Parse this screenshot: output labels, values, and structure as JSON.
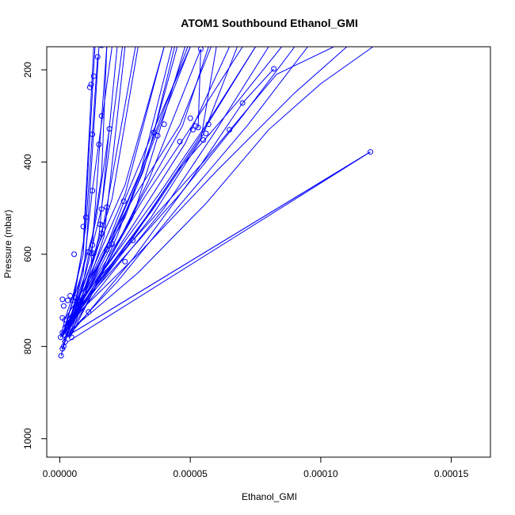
{
  "chart_data": {
    "type": "line",
    "title": "ATOM1 Southbound Ethanol_GMI",
    "xlabel": "Ethanol_GMI",
    "ylabel": "Pressure (mbar)",
    "xlim": [
      -5e-06,
      0.000165
    ],
    "ylim": [
      1040,
      150
    ],
    "y_reversed": true,
    "grid": false,
    "legend": "none",
    "series_color": "#0000ff",
    "x_ticks": [
      {
        "value": 0,
        "label": "0.00000"
      },
      {
        "value": 5e-05,
        "label": "0.00005"
      },
      {
        "value": 0.0001,
        "label": "0.00010"
      },
      {
        "value": 0.00015,
        "label": "0.00015"
      }
    ],
    "y_ticks": [
      {
        "value": 200,
        "label": "200"
      },
      {
        "value": 400,
        "label": "400"
      },
      {
        "value": 600,
        "label": "600"
      },
      {
        "value": 800,
        "label": "800"
      },
      {
        "value": 1000,
        "label": "1000"
      }
    ],
    "series": [
      {
        "x": [
          5e-07,
          1.5e-06,
          3e-06,
          5e-06,
          9e-06,
          1.25e-05,
          2e-05
        ],
        "y": [
          820,
          800,
          770,
          720,
          640,
          460,
          150
        ]
      },
      {
        "x": [
          1e-06,
          3e-06,
          6e-06,
          1e-05,
          1.5e-05
        ],
        "y": [
          805,
          760,
          700,
          600,
          150
        ]
      },
      {
        "x": [
          2e-06,
          5e-06,
          9e-06,
          1.4e-05,
          1.9e-05
        ],
        "y": [
          790,
          740,
          660,
          520,
          328
        ]
      },
      {
        "x": [
          1e-06,
          5e-06,
          1e-05,
          1.6e-05,
          2.4e-05
        ],
        "y": [
          780,
          720,
          640,
          500,
          150
        ]
      },
      {
        "x": [
          1.5e-06,
          4e-06,
          8e-06,
          1.25e-05,
          1.6e-05,
          1.8e-05
        ],
        "y": [
          775,
          720,
          650,
          560,
          430,
          150
        ]
      },
      {
        "x": [
          3e-07,
          2e-06,
          5e-06,
          9e-06,
          1.35e-05
        ],
        "y": [
          780,
          740,
          690,
          600,
          150
        ]
      },
      {
        "x": [
          4e-06,
          9e-06,
          1.5e-05,
          2.2e-05
        ],
        "y": [
          780,
          700,
          560,
          150
        ]
      },
      {
        "x": [
          2e-06,
          6e-06,
          1.2e-05,
          1.8e-05
        ],
        "y": [
          770,
          720,
          620,
          150
        ]
      },
      {
        "x": [
          1e-06,
          6e-06,
          1.2e-05,
          2e-05,
          3e-05
        ],
        "y": [
          775,
          710,
          620,
          480,
          150
        ]
      },
      {
        "x": [
          3e-06,
          1.2e-05,
          2.5e-05,
          4e-05
        ],
        "y": [
          770,
          640,
          470,
          150
        ]
      },
      {
        "x": [
          1e-06,
          1e-05,
          2e-05,
          3.1e-05,
          4.3e-05
        ],
        "y": [
          780,
          680,
          560,
          420,
          150
        ]
      },
      {
        "x": [
          2e-06,
          1.4e-05,
          3e-05,
          4.8e-05,
          6.5e-05
        ],
        "y": [
          770,
          660,
          520,
          360,
          150
        ]
      },
      {
        "x": [
          3e-06,
          2e-05,
          4e-05,
          6e-05,
          8e-05
        ],
        "y": [
          760,
          640,
          500,
          330,
          150
        ]
      },
      {
        "x": [
          5e-06,
          2.4e-05,
          4.6e-05,
          7e-05,
          9e-05
        ],
        "y": [
          730,
          610,
          470,
          300,
          150
        ]
      },
      {
        "x": [
          2e-06,
          1.6e-05,
          3.3e-05,
          5.2e-05,
          7.5e-05
        ],
        "y": [
          770,
          650,
          520,
          360,
          150
        ]
      },
      {
        "x": [
          4e-06,
          2.8e-05,
          5.5e-05,
          8.3e-05,
          0.000105
        ],
        "y": [
          720,
          570,
          400,
          210,
          150
        ]
      },
      {
        "x": [
          3e-06,
          3e-05,
          6e-05,
          9e-05,
          0.00011
        ],
        "y": [
          750,
          600,
          420,
          250,
          150
        ]
      },
      {
        "x": [
          2e-06,
          2.2e-05,
          4.5e-05,
          7.2e-05,
          9.5e-05
        ],
        "y": [
          780,
          660,
          500,
          320,
          150
        ]
      },
      {
        "x": [
          2e-06,
          0.000119,
          3e-06
        ],
        "y": [
          780,
          378,
          790
        ]
      },
      {
        "x": [
          2e-06,
          0.000119
        ],
        "y": [
          780,
          378
        ]
      },
      {
        "x": [
          3e-06,
          3e-05,
          5.6e-05,
          8e-05,
          0.0001,
          0.00012
        ],
        "y": [
          770,
          640,
          490,
          330,
          230,
          150
        ]
      },
      {
        "x": [
          1e-06,
          1.8e-05,
          3.5e-05,
          5.4e-05,
          6e-05
        ],
        "y": [
          760,
          640,
          520,
          352,
          150
        ]
      },
      {
        "x": [
          2e-06,
          1.2e-05,
          2.5e-05,
          3.7e-05,
          5e-05
        ],
        "y": [
          740,
          650,
          520,
          338,
          150
        ]
      },
      {
        "x": [
          3e-06,
          1.8e-05,
          3.2e-05,
          4.7e-05,
          5.7e-05
        ],
        "y": [
          750,
          620,
          470,
          322,
          150
        ]
      },
      {
        "x": [
          4e-06,
          1.6e-05,
          2.8e-05,
          3.9e-05,
          4.8e-05
        ],
        "y": [
          760,
          640,
          520,
          318,
          150
        ]
      },
      {
        "x": [
          2e-06,
          9e-06,
          1.8e-05,
          3.2e-05,
          4.5e-05
        ],
        "y": [
          770,
          700,
          600,
          420,
          150
        ]
      },
      {
        "x": [
          1e-06,
          4e-06,
          8e-06,
          1.6e-05,
          2.9e-05
        ],
        "y": [
          790,
          760,
          700,
          560,
          150
        ]
      },
      {
        "x": [
          3e-06,
          1.1e-05,
          2.1e-05,
          3.4e-05,
          5.4e-05
        ],
        "y": [
          780,
          700,
          590,
          440,
          155
        ]
      },
      {
        "x": [
          5.4e-05,
          5.3e-05
        ],
        "y": [
          155,
          325
        ]
      },
      {
        "x": [
          2e-06,
          7e-06,
          1.4e-05,
          2.5e-05,
          4e-05
        ],
        "y": [
          770,
          700,
          590,
          450,
          150
        ]
      },
      {
        "x": [
          4e-06,
          1e-05,
          1.7e-05,
          2.5e-05
        ],
        "y": [
          770,
          680,
          560,
          150
        ]
      },
      {
        "x": [
          2e-06,
          6e-06,
          1e-05,
          1.45e-05
        ],
        "y": [
          760,
          680,
          540,
          172
        ]
      },
      {
        "x": [
          1e-06,
          5e-06,
          9e-06,
          1.3e-05
        ],
        "y": [
          775,
          700,
          580,
          150
        ]
      },
      {
        "x": [
          3e-06,
          1e-05,
          1.9e-05,
          3.1e-05,
          4.9e-05
        ],
        "y": [
          760,
          680,
          580,
          420,
          150
        ]
      },
      {
        "x": [
          2e-06,
          1.4e-05,
          2.5e-05,
          3.6e-05,
          5e-05
        ],
        "y": [
          780,
          640,
          480,
          330,
          150
        ]
      },
      {
        "x": [
          3e-06,
          2e-05,
          3.8e-05,
          5.6e-05,
          7.5e-05
        ],
        "y": [
          740,
          610,
          470,
          320,
          150
        ]
      },
      {
        "x": [
          2e-06,
          2.5e-05,
          4.5e-05,
          6.8e-05,
          8.5e-05
        ],
        "y": [
          765,
          590,
          420,
          270,
          150
        ]
      },
      {
        "x": [
          1e-06,
          1.5e-05,
          3.2e-05,
          5.2e-05,
          7e-05
        ],
        "y": [
          770,
          640,
          480,
          310,
          150
        ]
      },
      {
        "x": [
          4e-06,
          1.2e-05,
          2.2e-05,
          3.5e-05,
          4.4e-05
        ],
        "y": [
          780,
          690,
          560,
          360,
          150
        ]
      },
      {
        "x": [
          6e-06,
          1.6e-05,
          2.8e-05,
          4.6e-05,
          5.8e-05
        ],
        "y": [
          720,
          600,
          480,
          320,
          150
        ]
      },
      {
        "x": [
          2e-06,
          1.9e-05,
          3.6e-05,
          5.5e-05,
          6.8e-05
        ],
        "y": [
          760,
          630,
          500,
          340,
          150
        ]
      },
      {
        "x": [
          3e-06,
          2.8e-05,
          5e-05,
          7e-05,
          8.2e-05
        ],
        "y": [
          780,
          610,
          440,
          272,
          198
        ]
      }
    ],
    "points": [
      {
        "x": 5e-07,
        "y": 820
      },
      {
        "x": 1e-06,
        "y": 805
      },
      {
        "x": 1.5e-06,
        "y": 800
      },
      {
        "x": 3e-07,
        "y": 780
      },
      {
        "x": 2e-06,
        "y": 790
      },
      {
        "x": 1.5e-06,
        "y": 775
      },
      {
        "x": 1e-06,
        "y": 770
      },
      {
        "x": 4.5e-06,
        "y": 780
      },
      {
        "x": 1e-06,
        "y": 738
      },
      {
        "x": 1.5e-06,
        "y": 712
      },
      {
        "x": 1e-06,
        "y": 698
      },
      {
        "x": 3e-06,
        "y": 700
      },
      {
        "x": 4e-06,
        "y": 690
      },
      {
        "x": 2e-06,
        "y": 742
      },
      {
        "x": 3.5e-06,
        "y": 766
      },
      {
        "x": 5e-06,
        "y": 700
      },
      {
        "x": 6e-06,
        "y": 695
      },
      {
        "x": 5.5e-06,
        "y": 600
      },
      {
        "x": 9e-06,
        "y": 540
      },
      {
        "x": 1e-05,
        "y": 520
      },
      {
        "x": 1.1e-05,
        "y": 595
      },
      {
        "x": 1.2e-05,
        "y": 598
      },
      {
        "x": 1.25e-05,
        "y": 580
      },
      {
        "x": 1.3e-05,
        "y": 598
      },
      {
        "x": 1.25e-05,
        "y": 462
      },
      {
        "x": 1.15e-05,
        "y": 238
      },
      {
        "x": 1.2e-05,
        "y": 232
      },
      {
        "x": 1.3e-05,
        "y": 214
      },
      {
        "x": 1.45e-05,
        "y": 172
      },
      {
        "x": 1.6e-05,
        "y": 147
      },
      {
        "x": 1.25e-05,
        "y": 340
      },
      {
        "x": 1.5e-05,
        "y": 362
      },
      {
        "x": 1.6e-05,
        "y": 300
      },
      {
        "x": 1.6e-05,
        "y": 502
      },
      {
        "x": 1.55e-05,
        "y": 535
      },
      {
        "x": 1.6e-05,
        "y": 555
      },
      {
        "x": 1.65e-05,
        "y": 537
      },
      {
        "x": 1.8e-05,
        "y": 498
      },
      {
        "x": 1.9e-05,
        "y": 328
      },
      {
        "x": 1.8e-05,
        "y": 590
      },
      {
        "x": 2e-05,
        "y": 578
      },
      {
        "x": 1.9e-05,
        "y": 580
      },
      {
        "x": 2.5e-05,
        "y": 616
      },
      {
        "x": 2.8e-05,
        "y": 570
      },
      {
        "x": 1.1e-05,
        "y": 725
      },
      {
        "x": 2.45e-05,
        "y": 485
      },
      {
        "x": 3.6e-05,
        "y": 336
      },
      {
        "x": 3.75e-05,
        "y": 343
      },
      {
        "x": 4e-05,
        "y": 318
      },
      {
        "x": 4.6e-05,
        "y": 356
      },
      {
        "x": 5e-05,
        "y": 305
      },
      {
        "x": 5.1e-05,
        "y": 330
      },
      {
        "x": 5.2e-05,
        "y": 322
      },
      {
        "x": 5.4e-05,
        "y": 155
      },
      {
        "x": 5.3e-05,
        "y": 325
      },
      {
        "x": 5.5e-05,
        "y": 352
      },
      {
        "x": 5.6e-05,
        "y": 338
      },
      {
        "x": 5.7e-05,
        "y": 318
      },
      {
        "x": 6.5e-05,
        "y": 330
      },
      {
        "x": 7e-05,
        "y": 272
      },
      {
        "x": 8.2e-05,
        "y": 198
      },
      {
        "x": 0.000119,
        "y": 378
      }
    ]
  }
}
